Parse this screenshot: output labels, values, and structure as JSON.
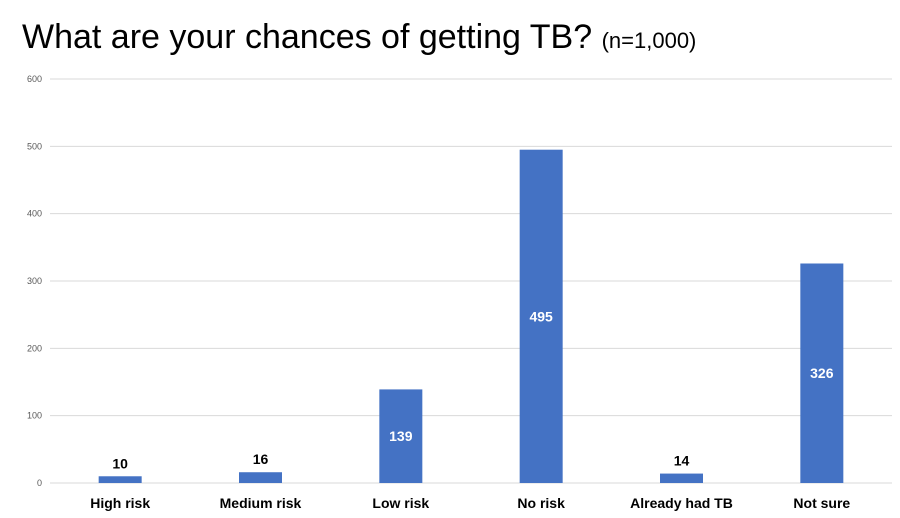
{
  "title": {
    "main": "What are your chances of getting TB?",
    "sub": "(n=1,000)"
  },
  "colors": {
    "bar": "#4472C4",
    "grid": "#D9D9D9",
    "tick": "#595959"
  },
  "chart_data": {
    "type": "bar",
    "title": "What are your chances of getting TB? (n=1,000)",
    "categories": [
      "High risk",
      "Medium risk",
      "Low risk",
      "No risk",
      "Already had TB",
      "Not sure"
    ],
    "values": [
      10,
      16,
      139,
      495,
      14,
      326
    ],
    "ylim": [
      0,
      600
    ],
    "yticks": [
      0,
      100,
      200,
      300,
      400,
      500,
      600
    ],
    "xlabel": "",
    "ylabel": "",
    "grid": true,
    "legend": "none"
  }
}
